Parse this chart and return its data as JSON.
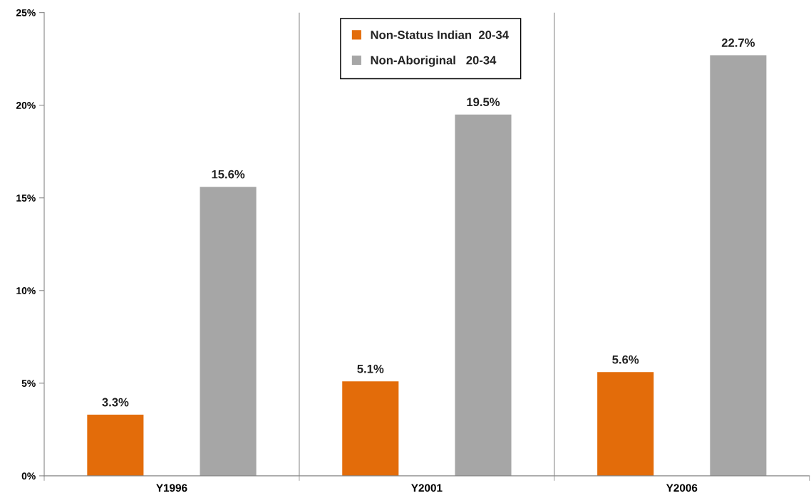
{
  "chart_data": {
    "type": "bar",
    "categories": [
      "Y1996",
      "Y2001",
      "Y2006"
    ],
    "series": [
      {
        "name": "Non-Status Indian  20-34",
        "color": "#e36c0a",
        "values": [
          3.3,
          5.1,
          5.6
        ],
        "value_labels": [
          "3.3%",
          "5.1%",
          "5.6%"
        ]
      },
      {
        "name": "Non-Aboriginal   20-34",
        "color": "#a6a6a6",
        "values": [
          15.6,
          19.5,
          22.7
        ],
        "value_labels": [
          "15.6%",
          "19.5%",
          "22.7%"
        ]
      }
    ],
    "ylim": [
      0,
      25
    ],
    "yticks": [
      {
        "value": 0,
        "label": "0%"
      },
      {
        "value": 5,
        "label": "5%"
      },
      {
        "value": 10,
        "label": "10%"
      },
      {
        "value": 15,
        "label": "15%"
      },
      {
        "value": 20,
        "label": "20%"
      },
      {
        "value": 25,
        "label": "25%"
      }
    ],
    "grid": "x",
    "legend": "top"
  }
}
